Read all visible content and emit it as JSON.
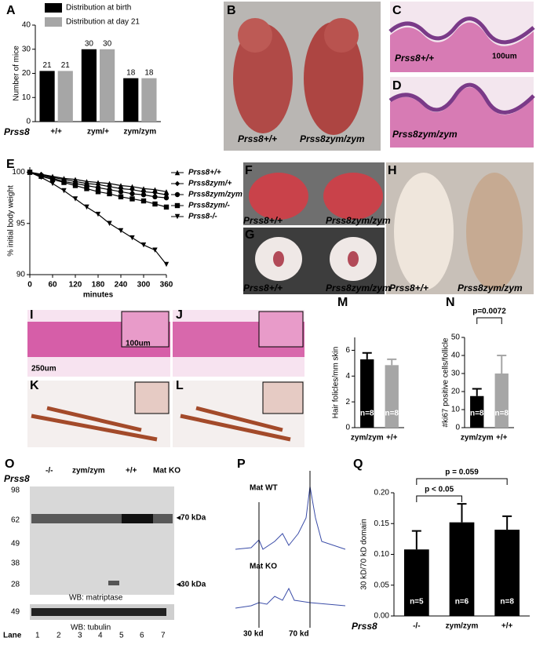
{
  "chart_data": [
    {
      "type": "bar",
      "ylabel": "Number of mice",
      "xlabel": "Prss8",
      "categories": [
        "+/+",
        "zym/+",
        "zym/zym"
      ],
      "series": [
        {
          "name": "Distribution at birth",
          "color": "#000000",
          "values": [
            21,
            30,
            18
          ]
        },
        {
          "name": "Distribution at day 21",
          "color": "#a6a6a6",
          "values": [
            21,
            30,
            18
          ]
        }
      ],
      "ylim": [
        0,
        40
      ],
      "yticks": [
        0,
        10,
        20,
        30,
        40
      ],
      "data_labels": true
    },
    {
      "type": "line",
      "ylabel": "% initial body weight",
      "xlabel": "minutes",
      "x": [
        0,
        30,
        60,
        90,
        120,
        150,
        180,
        210,
        240,
        270,
        300,
        330,
        360
      ],
      "series": [
        {
          "name": "Prss8+/+",
          "color": "#000000",
          "marker": "triangle-up",
          "values": [
            100,
            99.8,
            99.6,
            99.4,
            99.3,
            99.1,
            99.0,
            98.9,
            98.7,
            98.6,
            98.4,
            98.3,
            98.1
          ]
        },
        {
          "name": "Prss8zym/+",
          "color": "#000000",
          "marker": "diamond",
          "values": [
            100,
            99.8,
            99.5,
            99.3,
            99.1,
            98.9,
            98.8,
            98.6,
            98.4,
            98.3,
            98.1,
            98.0,
            97.8
          ]
        },
        {
          "name": "Prss8zym/zym",
          "color": "#000000",
          "marker": "circle",
          "values": [
            100,
            99.7,
            99.4,
            99.1,
            98.9,
            98.7,
            98.5,
            98.3,
            98.1,
            97.9,
            97.8,
            97.6,
            97.5
          ]
        },
        {
          "name": "Prss8zym/-",
          "color": "#000000",
          "marker": "square",
          "values": [
            100,
            99.6,
            99.3,
            99.0,
            98.7,
            98.4,
            98.1,
            97.9,
            97.6,
            97.4,
            97.2,
            96.9,
            96.6
          ]
        },
        {
          "name": "Prss8-/-",
          "color": "#000000",
          "marker": "triangle-down",
          "values": [
            100,
            99.5,
            98.9,
            98.2,
            97.4,
            96.6,
            95.9,
            95.0,
            94.3,
            93.6,
            92.9,
            92.4,
            91.0
          ]
        }
      ],
      "xlim": [
        0,
        360
      ],
      "xticks": [
        0,
        60,
        120,
        180,
        240,
        300,
        360
      ],
      "ylim": [
        90,
        100.5
      ],
      "yticks": [
        90,
        95,
        100
      ]
    },
    {
      "type": "bar",
      "ylabel": "Hair folicles/mm skin",
      "categories": [
        "zym/zym",
        "+/+"
      ],
      "series": [
        {
          "colors": [
            "#000000",
            "#a6a6a6"
          ],
          "values": [
            5.3,
            4.85
          ],
          "errors": [
            0.5,
            0.45
          ],
          "bar_labels": [
            "n=8",
            "n=8"
          ]
        }
      ],
      "ylim": [
        0,
        7
      ],
      "yticks": [
        0,
        2,
        4,
        6
      ]
    },
    {
      "type": "bar",
      "ylabel": "#ki67 positive cells/follicle",
      "categories": [
        "zym/zym",
        "+/+"
      ],
      "series": [
        {
          "colors": [
            "#000000",
            "#a6a6a6"
          ],
          "values": [
            17.5,
            30
          ],
          "errors": [
            4,
            10
          ],
          "bar_labels": [
            "n=8",
            "n=8"
          ]
        }
      ],
      "ylim": [
        0,
        50
      ],
      "yticks": [
        0,
        10,
        20,
        30,
        40,
        50
      ],
      "annotations": [
        "p=0.0072"
      ]
    },
    {
      "type": "bar",
      "ylabel": "30 kD/70 kD domain",
      "xlabel": "Prss8",
      "categories": [
        "-/-",
        "zym/zym",
        "+/+"
      ],
      "series": [
        {
          "colors": [
            "#000000",
            "#000000",
            "#000000"
          ],
          "values": [
            0.108,
            0.152,
            0.14
          ],
          "errors": [
            0.03,
            0.03,
            0.022
          ],
          "bar_labels": [
            "n=5",
            "n=6",
            "n=8"
          ]
        }
      ],
      "ylim": [
        0,
        0.2
      ],
      "yticks": [
        {
          "value": 0,
          "label": "0.00"
        },
        {
          "value": 0.05,
          "label": "0.05"
        },
        {
          "value": 0.1,
          "label": "0.10"
        },
        {
          "value": 0.15,
          "label": "0.15"
        },
        {
          "value": 0.2,
          "label": "0.20"
        }
      ],
      "annotations": [
        "p < 0.05",
        "p = 0.059"
      ]
    }
  ],
  "panels": {
    "letters": [
      "A",
      "B",
      "C",
      "D",
      "E",
      "F",
      "G",
      "H",
      "I",
      "J",
      "K",
      "L",
      "M",
      "N",
      "O",
      "P",
      "Q"
    ],
    "genotype_labels": [
      "Prss8+/+",
      "Prss8zym/zym",
      "Prss8+/+",
      "Prss8zym/zym",
      "Prss8+/+",
      "Prss8zym/zym",
      "Prss8+/+",
      "Prss8zym/zym",
      "Prss8+/+",
      "Prss8zym/zym"
    ],
    "scale_bars": [
      "100um",
      "100um",
      "250um"
    ],
    "blot": {
      "gene": "Prss8",
      "groups": [
        "-/-",
        "zym/zym",
        "+/+",
        "Mat KO"
      ],
      "markers": [
        "98",
        "62",
        "49",
        "38",
        "28",
        "49"
      ],
      "bands": [
        "◂70 kDa",
        "◂30 kDa"
      ],
      "probes": [
        "WB: matriptase",
        "WB: tubulin"
      ],
      "lane_title": "Lane",
      "lanes": [
        "1",
        "2",
        "3",
        "4",
        "5",
        "6",
        "7"
      ]
    },
    "profile": {
      "traces": [
        "Mat WT",
        "Mat KO"
      ],
      "sizes": [
        "30 kd",
        "70 kd"
      ]
    }
  }
}
